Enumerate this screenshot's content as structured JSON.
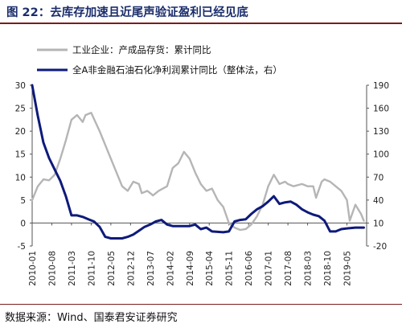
{
  "header": {
    "title": "图 22：去库存加速且近尾声验证盈利已经见底"
  },
  "footer": {
    "source": "数据来源：Wind、国泰君安证券研究"
  },
  "colors": {
    "series_gray": "#b5b5b5",
    "series_navy": "#0e1a7a",
    "rule": "#7b1c1c",
    "title": "#1a2d6b"
  },
  "chart_data": {
    "type": "line",
    "title": "",
    "legend_position": "top-left",
    "grid": false,
    "x_ticks": [
      "2010-01",
      "2010-08",
      "2011-03",
      "2011-10",
      "2012-05",
      "2012-12",
      "2013-07",
      "2014-02",
      "2014-09",
      "2015-04",
      "2015-11",
      "2016-06",
      "2017-01",
      "2017-08",
      "2018-03",
      "2018-10",
      "2019-05"
    ],
    "x_range": [
      "2010-01",
      "2019-12"
    ],
    "y_left": {
      "ticks": [
        -5,
        0,
        5,
        10,
        15,
        20,
        25,
        30
      ],
      "range": [
        -5,
        30
      ]
    },
    "y_right": {
      "ticks": [
        -20,
        10,
        40,
        70,
        100,
        130,
        160,
        190
      ],
      "range": [
        -20,
        190
      ]
    },
    "series": [
      {
        "name": "工业企业：产成品存货：累计同比",
        "axis": "left",
        "color": "#b5b5b5",
        "points": [
          [
            "2010-01",
            5
          ],
          [
            "2010-03",
            8
          ],
          [
            "2010-05",
            9.5
          ],
          [
            "2010-07",
            9.3
          ],
          [
            "2010-09",
            10.5
          ],
          [
            "2010-11",
            14
          ],
          [
            "2011-01",
            18
          ],
          [
            "2011-03",
            22.5
          ],
          [
            "2011-05",
            23.5
          ],
          [
            "2011-07",
            22
          ],
          [
            "2011-08",
            23.5
          ],
          [
            "2011-10",
            24
          ],
          [
            "2012-01",
            20
          ],
          [
            "2012-03",
            17
          ],
          [
            "2012-05",
            14
          ],
          [
            "2012-07",
            11
          ],
          [
            "2012-09",
            8
          ],
          [
            "2012-11",
            7
          ],
          [
            "2013-01",
            9
          ],
          [
            "2013-03",
            8.5
          ],
          [
            "2013-04",
            6.5
          ],
          [
            "2013-06",
            7
          ],
          [
            "2013-08",
            6
          ],
          [
            "2013-10",
            7
          ],
          [
            "2014-01",
            8
          ],
          [
            "2014-03",
            12
          ],
          [
            "2014-05",
            13
          ],
          [
            "2014-07",
            15.5
          ],
          [
            "2014-09",
            14
          ],
          [
            "2014-11",
            11
          ],
          [
            "2015-01",
            8.5
          ],
          [
            "2015-03",
            7
          ],
          [
            "2015-05",
            7.5
          ],
          [
            "2015-07",
            5
          ],
          [
            "2015-09",
            3.5
          ],
          [
            "2015-11",
            0
          ],
          [
            "2016-01",
            -1
          ],
          [
            "2016-03",
            -1.5
          ],
          [
            "2016-05",
            -1.3
          ],
          [
            "2016-07",
            -0.3
          ],
          [
            "2016-09",
            1.5
          ],
          [
            "2016-11",
            4
          ],
          [
            "2017-01",
            8
          ],
          [
            "2017-03",
            10.5
          ],
          [
            "2017-05",
            8.5
          ],
          [
            "2017-07",
            9
          ],
          [
            "2017-08",
            8.5
          ],
          [
            "2017-10",
            8
          ],
          [
            "2018-01",
            8.5
          ],
          [
            "2018-03",
            8
          ],
          [
            "2018-05",
            8
          ],
          [
            "2018-06",
            5.5
          ],
          [
            "2018-08",
            9
          ],
          [
            "2018-09",
            9.5
          ],
          [
            "2018-11",
            9
          ],
          [
            "2019-01",
            8
          ],
          [
            "2019-03",
            7
          ],
          [
            "2019-05",
            5
          ],
          [
            "2019-06",
            0.5
          ],
          [
            "2019-08",
            4
          ],
          [
            "2019-10",
            2
          ],
          [
            "2019-11",
            0.5
          ]
        ]
      },
      {
        "name": "全A非金融石油石化净利润累计同比（整体法，右）",
        "axis": "right",
        "color": "#0e1a7a",
        "points": [
          [
            "2010-01",
            190
          ],
          [
            "2010-03",
            150
          ],
          [
            "2010-05",
            115
          ],
          [
            "2010-07",
            95
          ],
          [
            "2010-09",
            80
          ],
          [
            "2010-11",
            65
          ],
          [
            "2011-01",
            45
          ],
          [
            "2011-03",
            20
          ],
          [
            "2011-05",
            20
          ],
          [
            "2011-07",
            18
          ],
          [
            "2011-09",
            15
          ],
          [
            "2011-11",
            12
          ],
          [
            "2012-01",
            5
          ],
          [
            "2012-03",
            -8
          ],
          [
            "2012-05",
            -10
          ],
          [
            "2012-07",
            -10
          ],
          [
            "2012-09",
            -10
          ],
          [
            "2012-11",
            -8
          ],
          [
            "2013-01",
            -5
          ],
          [
            "2013-03",
            0
          ],
          [
            "2013-05",
            5
          ],
          [
            "2013-07",
            8
          ],
          [
            "2013-09",
            12
          ],
          [
            "2013-11",
            14
          ],
          [
            "2014-01",
            8
          ],
          [
            "2014-03",
            6
          ],
          [
            "2014-06",
            6
          ],
          [
            "2014-09",
            6
          ],
          [
            "2014-11",
            8
          ],
          [
            "2015-01",
            2
          ],
          [
            "2015-03",
            4
          ],
          [
            "2015-05",
            -1
          ],
          [
            "2015-09",
            -2
          ],
          [
            "2015-11",
            -1
          ],
          [
            "2016-01",
            12
          ],
          [
            "2016-03",
            14
          ],
          [
            "2016-05",
            15
          ],
          [
            "2016-07",
            22
          ],
          [
            "2016-09",
            28
          ],
          [
            "2016-11",
            32
          ],
          [
            "2017-01",
            38
          ],
          [
            "2017-03",
            45
          ],
          [
            "2017-05",
            35
          ],
          [
            "2017-07",
            37
          ],
          [
            "2017-09",
            38
          ],
          [
            "2017-11",
            34
          ],
          [
            "2018-01",
            28
          ],
          [
            "2018-03",
            24
          ],
          [
            "2018-05",
            21
          ],
          [
            "2018-07",
            19
          ],
          [
            "2018-09",
            13
          ],
          [
            "2018-11",
            -1
          ],
          [
            "2019-01",
            -1
          ],
          [
            "2019-03",
            2
          ],
          [
            "2019-05",
            3
          ],
          [
            "2019-08",
            4
          ],
          [
            "2019-10",
            4
          ],
          [
            "2019-11",
            4
          ]
        ]
      }
    ]
  }
}
